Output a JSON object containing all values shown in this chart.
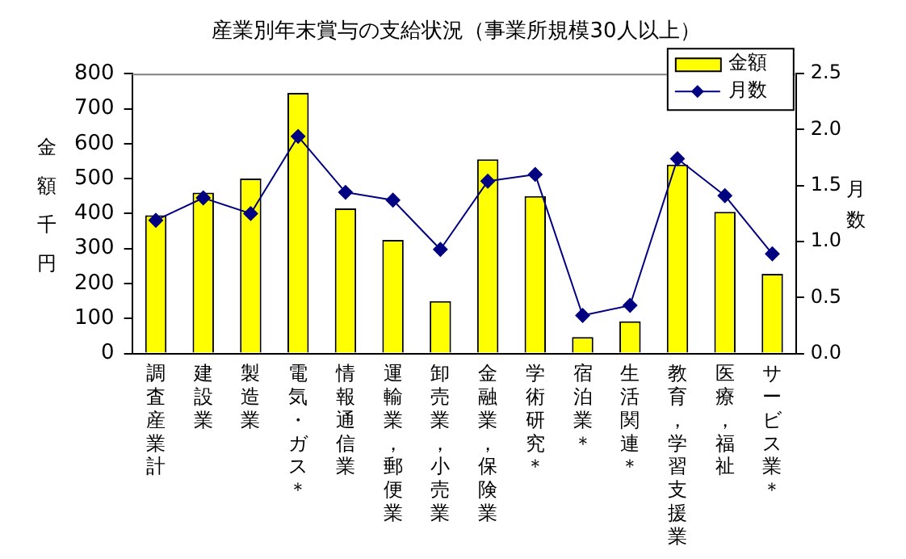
{
  "chart_data": {
    "type": "bar",
    "title": "産業別年末賞与の支給状況（事業所規模30人以上）",
    "categories": [
      "調査産業計",
      "建設業",
      "製造業",
      "電気・ガス＊",
      "情報通信業",
      "運輸業，郵便業",
      "卸売業，小売業",
      "金融業，保険業",
      "学術研究＊",
      "宿泊業＊",
      "生活関連＊",
      "教育，学習支援業",
      "医療，福祉",
      "サービス業＊"
    ],
    "series": [
      {
        "name": "金額",
        "color": "#ffff00",
        "values": [
          395,
          460,
          500,
          745,
          415,
          325,
          150,
          555,
          450,
          47,
          92,
          540,
          405,
          228
        ]
      },
      {
        "name": "月数",
        "type": "line",
        "axis": "y2",
        "color": "#000080",
        "marker": "diamond",
        "values": [
          1.19,
          1.39,
          1.25,
          1.94,
          1.44,
          1.37,
          0.93,
          1.54,
          1.6,
          0.34,
          0.43,
          1.74,
          1.41,
          0.89
        ]
      }
    ],
    "ylabel": "金額千円",
    "y2label": "月数",
    "ylim": [
      0,
      800
    ],
    "yticks": [
      0,
      100,
      200,
      300,
      400,
      500,
      600,
      700,
      800
    ],
    "y2lim": [
      0,
      2.5
    ],
    "y2ticks": [
      {
        "value": 0,
        "label": "0.0"
      },
      {
        "value": 0.5,
        "label": "0.5"
      },
      {
        "value": 1,
        "label": "1.0"
      },
      {
        "value": 1.5,
        "label": "1.5"
      },
      {
        "value": 2,
        "label": "2.0"
      },
      {
        "value": 2.5,
        "label": "2.5"
      }
    ],
    "grid": false,
    "legend": "top right"
  }
}
